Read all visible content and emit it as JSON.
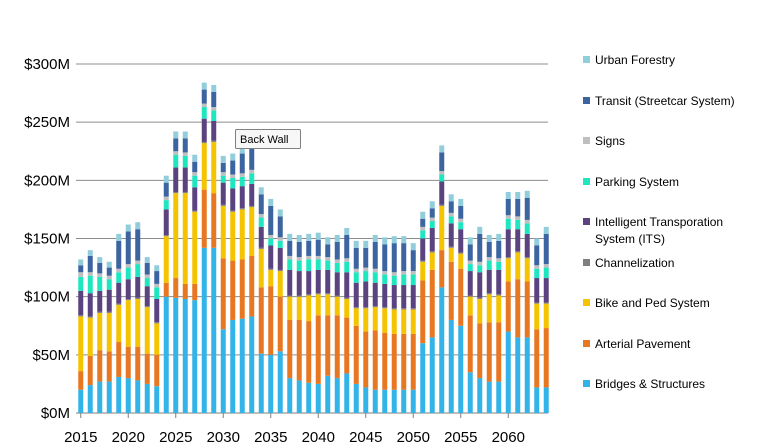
{
  "chart_data": {
    "type": "bar",
    "stacked": true,
    "title": "",
    "xlabel": "",
    "ylabel": "",
    "ylim": [
      0,
      330
    ],
    "y_unit": "$M",
    "y_ticks": [
      {
        "value": 0,
        "label": "$0M"
      },
      {
        "value": 50,
        "label": "$50M"
      },
      {
        "value": 100,
        "label": "$100M"
      },
      {
        "value": 150,
        "label": "$150M"
      },
      {
        "value": 200,
        "label": "$200M"
      },
      {
        "value": 250,
        "label": "$250M"
      },
      {
        "value": 300,
        "label": "$300M"
      }
    ],
    "x_ticks": [
      {
        "value": 2015,
        "label": "2015"
      },
      {
        "value": 2020,
        "label": "2020"
      },
      {
        "value": 2025,
        "label": "2025"
      },
      {
        "value": 2030,
        "label": "2030"
      },
      {
        "value": 2035,
        "label": "2035"
      },
      {
        "value": 2040,
        "label": "2040"
      },
      {
        "value": 2045,
        "label": "2045"
      },
      {
        "value": 2050,
        "label": "2050"
      },
      {
        "value": 2055,
        "label": "2055"
      },
      {
        "value": 2060,
        "label": "2060"
      }
    ],
    "categories": [
      2015,
      2016,
      2017,
      2018,
      2019,
      2020,
      2021,
      2022,
      2023,
      2024,
      2025,
      2026,
      2027,
      2028,
      2029,
      2030,
      2031,
      2032,
      2033,
      2034,
      2035,
      2036,
      2037,
      2038,
      2039,
      2040,
      2041,
      2042,
      2043,
      2044,
      2045,
      2046,
      2047,
      2048,
      2049,
      2050,
      2051,
      2052,
      2053,
      2054,
      2055,
      2056,
      2057,
      2058,
      2059,
      2060,
      2061,
      2062,
      2063,
      2064
    ],
    "series": [
      {
        "name": "Bridges & Structures",
        "color": "#33b4e8",
        "values": [
          20,
          24,
          27,
          27,
          31,
          30,
          28,
          25,
          23,
          100,
          99,
          98,
          97,
          142,
          142,
          72,
          80,
          81,
          83,
          51,
          50,
          53,
          30,
          28,
          26,
          25,
          32,
          30,
          34,
          25,
          22,
          20,
          20,
          20,
          20,
          20,
          60,
          65,
          108,
          80,
          75,
          35,
          30,
          27,
          27,
          70,
          65,
          65,
          22,
          22
        ]
      },
      {
        "name": "Arterial Pavement",
        "color": "#e87722",
        "values": [
          16,
          25,
          27,
          26,
          30,
          27,
          29,
          26,
          27,
          12,
          17,
          13,
          14,
          50,
          47,
          61,
          51,
          51,
          52,
          57,
          59,
          47,
          50,
          52,
          53,
          59,
          52,
          54,
          48,
          50,
          48,
          51,
          49,
          48,
          48,
          48,
          54,
          58,
          32,
          50,
          49,
          49,
          47,
          51,
          51,
          43,
          50,
          48,
          50,
          51
        ]
      },
      {
        "name": "Bike and Ped System",
        "color": "#f5c400",
        "values": [
          47,
          33,
          32,
          33,
          32,
          40,
          41,
          40,
          27,
          40,
          73,
          78,
          62,
          40,
          44,
          45,
          42,
          43,
          42,
          33,
          14,
          22,
          20,
          20,
          22,
          18,
          18,
          16,
          16,
          15,
          20,
          20,
          21,
          21,
          21,
          21,
          16,
          15,
          38,
          12,
          13,
          16,
          21,
          24,
          23,
          20,
          23,
          20,
          22,
          21
        ]
      },
      {
        "name": "Channelization",
        "color": "#7f7f7f",
        "values": [
          1,
          1,
          1,
          1,
          1,
          1,
          1,
          1,
          1,
          1,
          1,
          1,
          1,
          1,
          1,
          1,
          1,
          1,
          1,
          1,
          1,
          1,
          1,
          1,
          1,
          1,
          1,
          1,
          1,
          1,
          1,
          1,
          1,
          1,
          1,
          1,
          1,
          1,
          1,
          1,
          1,
          1,
          1,
          1,
          1,
          1,
          1,
          1,
          1,
          1
        ]
      },
      {
        "name": "Intelligent Transporation System (ITS)",
        "color": "#5b4380",
        "values": [
          21,
          20,
          18,
          19,
          18,
          17,
          18,
          17,
          20,
          22,
          21,
          21,
          20,
          20,
          17,
          19,
          19,
          19,
          19,
          18,
          20,
          19,
          22,
          21,
          20,
          20,
          20,
          20,
          22,
          21,
          22,
          20,
          20,
          20,
          20,
          20,
          19,
          20,
          20,
          20,
          20,
          21,
          22,
          20,
          21,
          24,
          19,
          20,
          21,
          21
        ]
      },
      {
        "name": "Parking System",
        "color": "#1ee7c0",
        "values": [
          12,
          15,
          12,
          9,
          9,
          10,
          11,
          7,
          10,
          8,
          11,
          10,
          10,
          10,
          9,
          6,
          9,
          8,
          9,
          8,
          6,
          6,
          9,
          9,
          10,
          9,
          8,
          8,
          9,
          9,
          9,
          9,
          8,
          8,
          9,
          9,
          7,
          6,
          6,
          6,
          6,
          6,
          6,
          8,
          7,
          9,
          8,
          9,
          8,
          9
        ]
      },
      {
        "name": "Signs",
        "color": "#bfbfbf",
        "values": [
          4,
          3,
          3,
          3,
          3,
          3,
          3,
          3,
          3,
          3,
          3,
          3,
          3,
          3,
          3,
          3,
          3,
          3,
          3,
          3,
          3,
          3,
          3,
          3,
          3,
          3,
          3,
          3,
          3,
          3,
          3,
          3,
          3,
          3,
          3,
          3,
          3,
          3,
          3,
          3,
          3,
          3,
          3,
          3,
          3,
          3,
          3,
          3,
          3,
          3
        ]
      },
      {
        "name": "Transit (Streetcar System)",
        "color": "#3c64a0",
        "values": [
          6,
          14,
          9,
          7,
          24,
          28,
          27,
          10,
          11,
          12,
          11,
          12,
          9,
          12,
          13,
          8,
          12,
          17,
          18,
          17,
          25,
          18,
          13,
          13,
          13,
          14,
          11,
          15,
          20,
          18,
          17,
          23,
          23,
          25,
          24,
          18,
          7,
          8,
          16,
          10,
          11,
          14,
          24,
          13,
          15,
          14,
          15,
          19,
          17,
          26
        ]
      },
      {
        "name": "Urban Forestry",
        "color": "#92cddc",
        "values": [
          5,
          5,
          5,
          5,
          6,
          6,
          6,
          5,
          5,
          6,
          6,
          6,
          6,
          6,
          6,
          6,
          6,
          6,
          6,
          6,
          6,
          6,
          6,
          6,
          6,
          6,
          6,
          6,
          6,
          6,
          6,
          6,
          6,
          6,
          6,
          6,
          6,
          6,
          6,
          6,
          6,
          6,
          6,
          6,
          6,
          6,
          6,
          6,
          6,
          6
        ]
      }
    ],
    "legend_position": "right",
    "legend_order": [
      "Urban Forestry",
      "Transit (Streetcar System)",
      "Signs",
      "Parking System",
      "Intelligent Transporation System (ITS)",
      "Channelization",
      "Bike and Ped System",
      "Arterial Pavement",
      "Bridges & Structures"
    ],
    "grid": true,
    "tooltip": "Back Wall"
  }
}
